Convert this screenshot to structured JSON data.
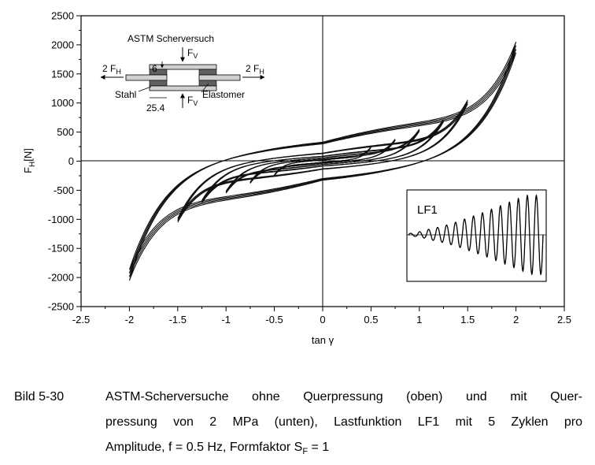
{
  "chart_data": {
    "type": "line",
    "xlabel": "tan γ",
    "ylabel_main": "F",
    "ylabel_sub": "H",
    "ylabel_unit": "[N]",
    "xlim": [
      -2.5,
      2.5
    ],
    "ylim": [
      -2500,
      2500
    ],
    "x_ticks": [
      -2.5,
      -2,
      -1.5,
      -1,
      -0.5,
      0,
      0.5,
      1,
      1.5,
      2,
      2.5
    ],
    "x_tick_labels": [
      "-2.5",
      "-2",
      "-1.5",
      "-1",
      "-0.5",
      "0",
      "0.5",
      "1",
      "1.5",
      "2",
      "2.5"
    ],
    "y_ticks": [
      -2500,
      -2000,
      -1500,
      -1000,
      -500,
      0,
      500,
      1000,
      1500,
      2000,
      2500
    ],
    "y_tick_labels": [
      "-2500",
      "-2000",
      "-1500",
      "-1000",
      "-500",
      "0",
      "500",
      "1000",
      "1500",
      "2000",
      "2500"
    ],
    "grid": false,
    "zero_lines": true,
    "series": [
      {
        "amplitude": 0.5,
        "peak_force": 250
      },
      {
        "amplitude": 0.75,
        "peak_force": 380
      },
      {
        "amplitude": 1.0,
        "peak_force": 550
      },
      {
        "amplitude": 1.25,
        "peak_force": 720
      },
      {
        "amplitude": 1.5,
        "peak_force": 1050
      },
      {
        "amplitude": 2.0,
        "peak_force": 2050,
        "peak_force_min": -2050
      }
    ],
    "annotations": {
      "schematic": {
        "title": "ASTM Scherversuch",
        "force_v": "F",
        "force_v_sub": "V",
        "force_h": "2 F",
        "force_h_sub": "H",
        "dim_top": "6",
        "dim_bottom": "25.4",
        "label_steel": "Stahl",
        "label_elastomer": "Elastomer"
      },
      "inset": {
        "label": "LF1",
        "peaks": [
          0.04,
          0.08,
          0.14,
          0.19,
          0.25,
          0.32,
          0.4,
          0.48,
          0.56,
          0.65,
          0.74,
          0.83,
          0.92,
          1.0,
          1.0
        ]
      }
    }
  },
  "caption": {
    "label": "Bild 5-30",
    "lines": [
      "ASTM-Scherversuche ohne Querpressung (oben) und mit Quer-",
      "pressung von 2 MPa (unten), Lastfunktion LF1 mit 5 Zyklen pro",
      "Amplitude, f = 0.5 Hz, Formfaktor S"
    ],
    "sub": "F",
    "tail": " = 1"
  }
}
